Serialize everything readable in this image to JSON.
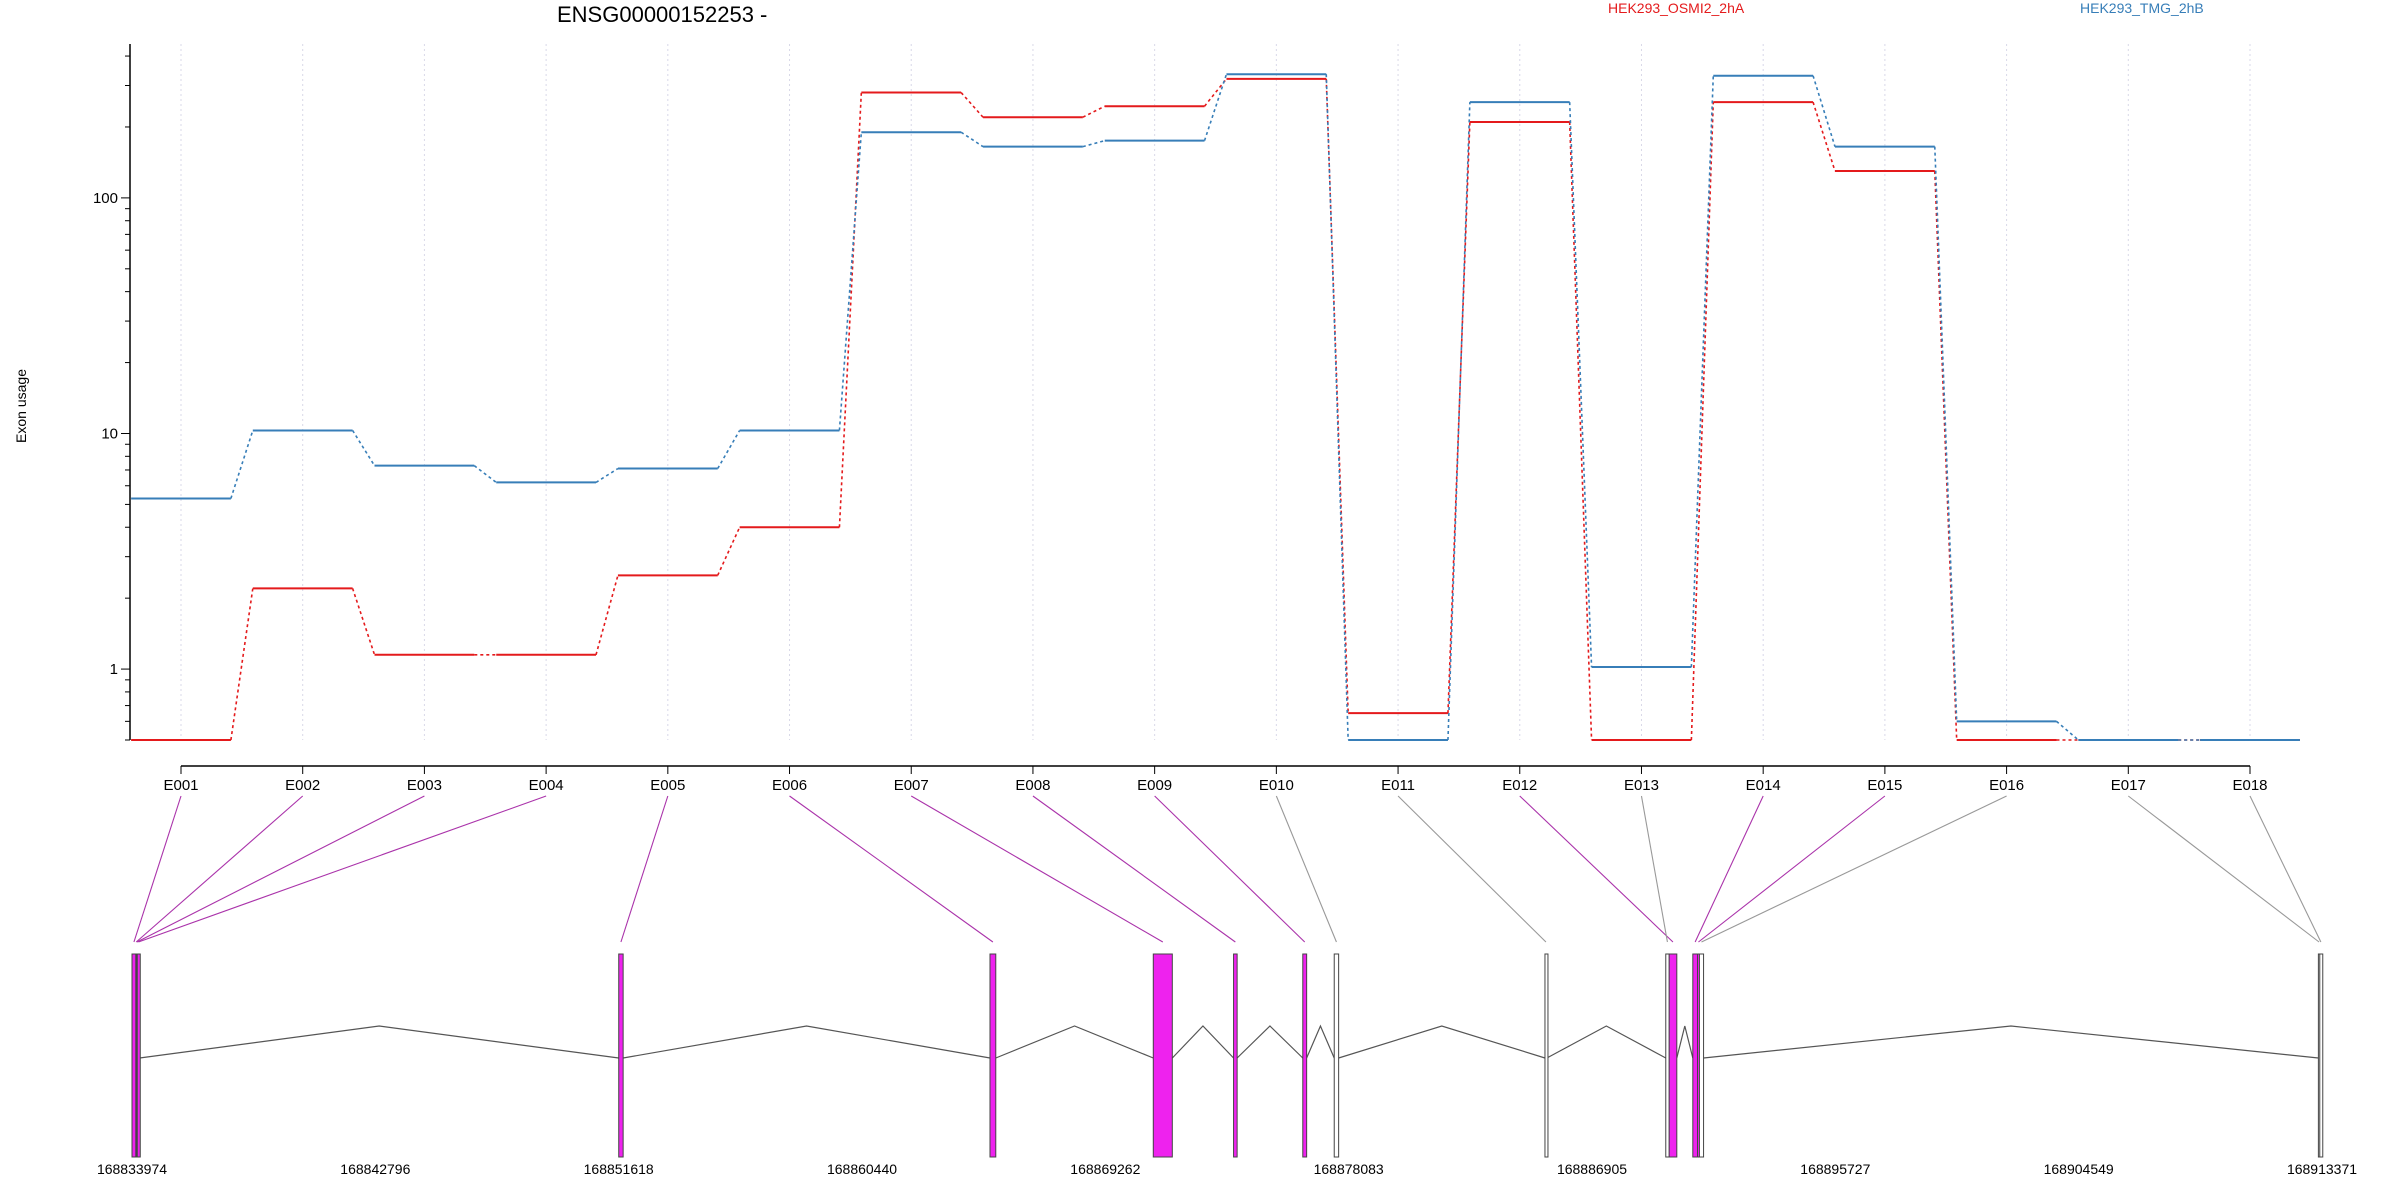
{
  "chart_data": {
    "type": "line",
    "title": "ENSG00000152253 -",
    "xlabel": "",
    "ylabel": "Exon usage",
    "yscale": "log",
    "ylim": [
      0.5,
      450
    ],
    "grid": "vertical dotted lines at each exon",
    "legend_placement": "top",
    "categories": [
      "E001",
      "E002",
      "E003",
      "E004",
      "E005",
      "E006",
      "E007",
      "E008",
      "E009",
      "E010",
      "E011",
      "E012",
      "E013",
      "E014",
      "E015",
      "E016",
      "E017",
      "E018"
    ],
    "yticks": [
      {
        "label": "1",
        "value": 1
      },
      {
        "label": "10",
        "value": 10
      },
      {
        "label": "100",
        "value": 100
      }
    ],
    "series": [
      {
        "name": "HEK293_OSMI2_2hA",
        "color": "#e41a1c",
        "values": [
          0.5,
          2.2,
          1.15,
          1.15,
          2.5,
          4.0,
          280,
          220,
          245,
          320,
          0.65,
          210,
          0.5,
          255,
          130,
          0.5,
          0.5,
          0.5
        ]
      },
      {
        "name": "HEK293_TMG_2hB",
        "color": "#377eb8",
        "values": [
          5.3,
          10.3,
          7.3,
          6.2,
          7.1,
          10.3,
          190,
          165,
          175,
          335,
          0.5,
          255,
          1.02,
          330,
          165,
          0.6,
          0.5,
          0.5
        ]
      }
    ],
    "gene_model": {
      "coordinate_ticks": [
        "168833974",
        "168842796",
        "168851618",
        "168860440",
        "168869262",
        "168878083",
        "168886905",
        "168895727",
        "168904549",
        "168913371"
      ],
      "coordinate_range": [
        168833974,
        168913371
      ],
      "exons": [
        {
          "id": "E001",
          "start": 168833974,
          "end": 168834115,
          "significant": true
        },
        {
          "id": "E002",
          "start": 168834115,
          "end": 168834140,
          "significant": true
        },
        {
          "id": "E003",
          "start": 168834140,
          "end": 168834165,
          "significant": true
        },
        {
          "id": "E004",
          "start": 168834165,
          "end": 168834250,
          "significant": true
        },
        {
          "id": "E005",
          "start": 168851620,
          "end": 168851780,
          "significant": true
        },
        {
          "id": "E006",
          "start": 168865080,
          "end": 168865290,
          "significant": true
        },
        {
          "id": "E007",
          "start": 168871000,
          "end": 168871690,
          "significant": true
        },
        {
          "id": "E008",
          "start": 168873910,
          "end": 168874040,
          "significant": true
        },
        {
          "id": "E009",
          "start": 168876420,
          "end": 168876560,
          "significant": true
        },
        {
          "id": "E010",
          "start": 168877560,
          "end": 168877720,
          "significant": false
        },
        {
          "id": "E011",
          "start": 168885200,
          "end": 168885270,
          "significant": false
        },
        {
          "id": "E012",
          "start": 168889700,
          "end": 168889980,
          "significant": true
        },
        {
          "id": "E013",
          "start": 168889580,
          "end": 168889700,
          "significant": false
        },
        {
          "id": "E014",
          "start": 168890560,
          "end": 168890730,
          "significant": true
        },
        {
          "id": "E015",
          "start": 168890730,
          "end": 168890800,
          "significant": true
        },
        {
          "id": "E016",
          "start": 168890800,
          "end": 168890950,
          "significant": false
        },
        {
          "id": "E017",
          "start": 168913240,
          "end": 168913290,
          "significant": false
        },
        {
          "id": "E018",
          "start": 168913290,
          "end": 168913371,
          "significant": false
        }
      ],
      "exon_colors": {
        "significant": "#ee22ee",
        "other": "#ffffff"
      }
    }
  }
}
